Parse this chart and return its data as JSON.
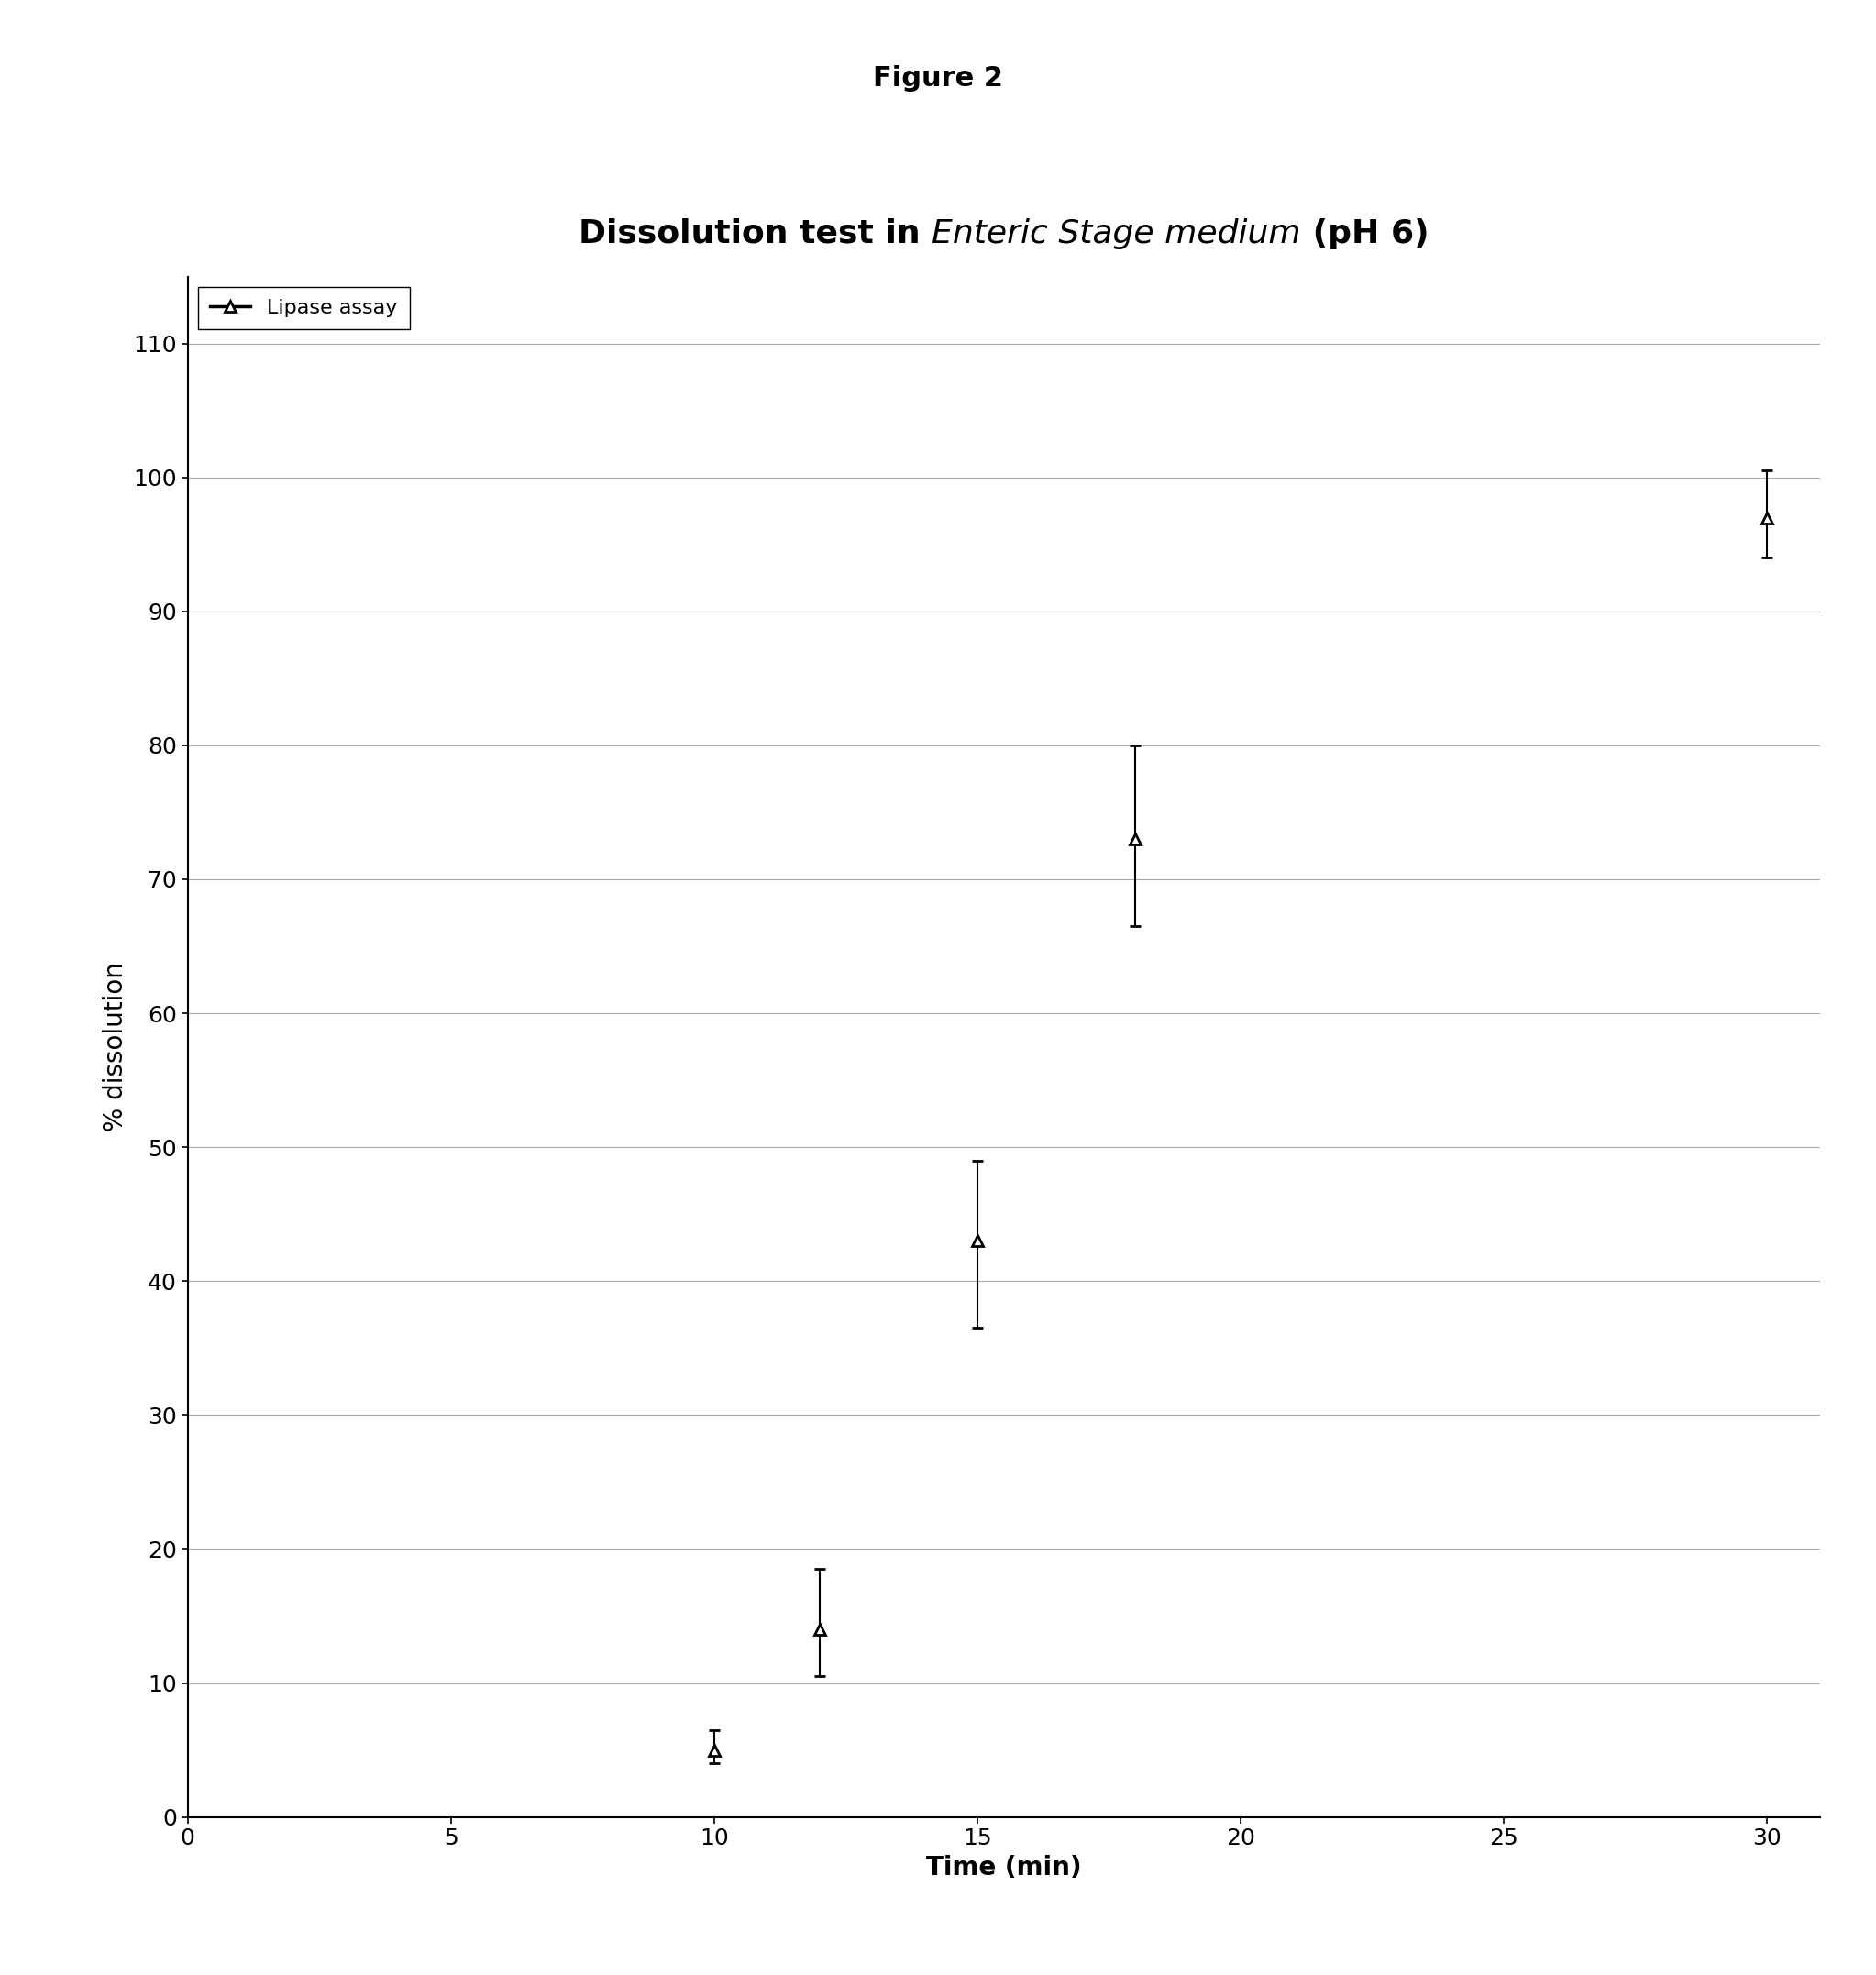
{
  "figure_title": "Figure 2",
  "xlabel": "Time (min)",
  "ylabel": "% dissolution",
  "xlim": [
    0,
    31
  ],
  "ylim": [
    0,
    115
  ],
  "xticks": [
    0,
    5,
    10,
    15,
    20,
    25,
    30
  ],
  "yticks": [
    0,
    10,
    20,
    30,
    40,
    50,
    60,
    70,
    80,
    90,
    100,
    110
  ],
  "x": [
    10,
    12,
    15,
    18,
    30
  ],
  "y": [
    5.0,
    14.0,
    43.0,
    73.0,
    97.0
  ],
  "yerr_low": [
    1.0,
    3.5,
    6.5,
    6.5,
    3.0
  ],
  "yerr_high": [
    1.5,
    4.5,
    6.0,
    7.0,
    3.5
  ],
  "line_color": "#000000",
  "marker": "^",
  "marker_size": 9,
  "legend_label": "Lipase assay",
  "background_color": "#ffffff",
  "grid_color": "#aaaaaa",
  "chart_title_fontsize": 26,
  "axis_label_fontsize": 20,
  "tick_fontsize": 18,
  "figure_title_fontsize": 22,
  "legend_fontsize": 16
}
